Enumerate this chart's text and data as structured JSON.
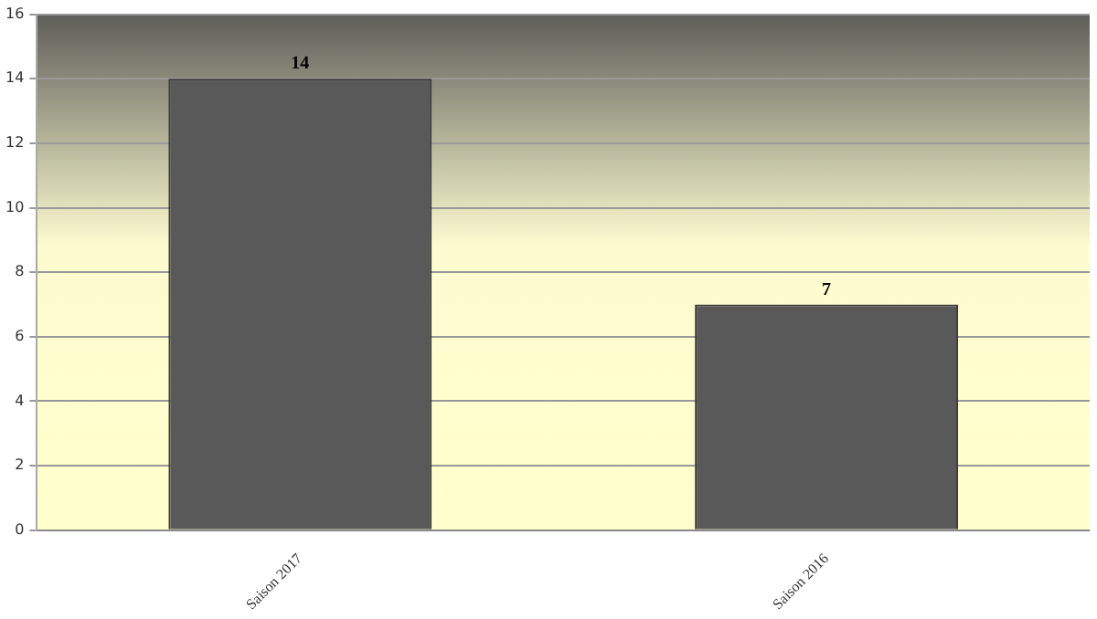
{
  "chart_data": {
    "type": "bar",
    "categories": [
      "Saison 2017",
      "Saison 2016"
    ],
    "values": [
      14,
      7
    ],
    "color": "#595959",
    "ylim": [
      0,
      16
    ],
    "yticks": [
      0,
      2,
      4,
      6,
      8,
      10,
      12,
      14,
      16
    ],
    "grid": "y",
    "data_labels": true,
    "legend": false
  }
}
